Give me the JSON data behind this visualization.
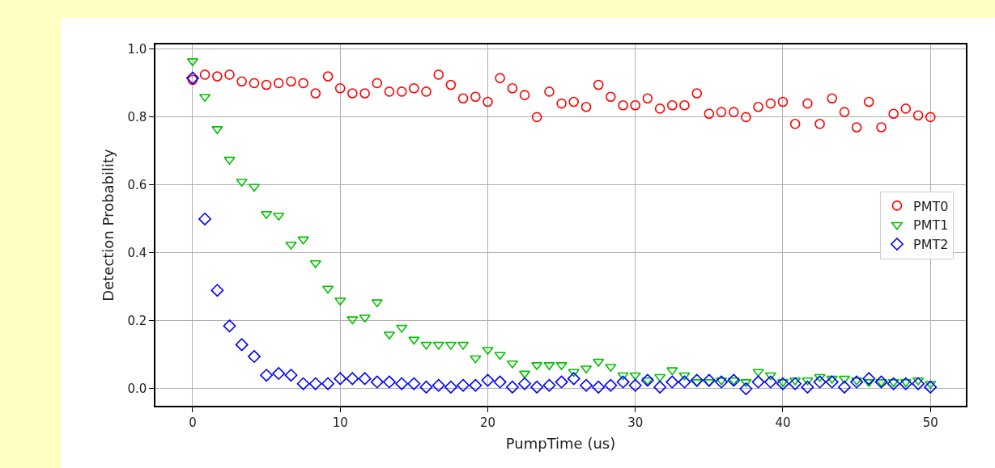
{
  "chart_data": {
    "type": "scatter",
    "xlabel": "PumpTime (us)",
    "ylabel": "Detection Probability",
    "x": [
      0,
      0.83,
      1.67,
      2.5,
      3.33,
      4.17,
      5,
      5.83,
      6.67,
      7.5,
      8.33,
      9.17,
      10,
      10.83,
      11.67,
      12.5,
      13.33,
      14.17,
      15,
      15.83,
      16.67,
      17.5,
      18.33,
      19.17,
      20,
      20.83,
      21.67,
      22.5,
      23.33,
      24.17,
      25,
      25.83,
      26.67,
      27.5,
      28.33,
      29.17,
      30,
      30.83,
      31.67,
      32.5,
      33.33,
      34.17,
      35,
      35.83,
      36.67,
      37.5,
      38.33,
      39.17,
      40,
      40.83,
      41.67,
      42.5,
      43.33,
      44.17,
      45,
      45.83,
      46.67,
      47.5,
      48.33,
      49.17,
      50
    ],
    "series": [
      {
        "name": "PMT0",
        "color": "#ff0000",
        "marker": "circle",
        "values": [
          0.91,
          0.925,
          0.92,
          0.925,
          0.905,
          0.9,
          0.895,
          0.9,
          0.905,
          0.9,
          0.87,
          0.92,
          0.885,
          0.87,
          0.87,
          0.9,
          0.875,
          0.875,
          0.885,
          0.875,
          0.925,
          0.895,
          0.855,
          0.86,
          0.845,
          0.915,
          0.885,
          0.865,
          0.8,
          0.875,
          0.84,
          0.845,
          0.83,
          0.895,
          0.86,
          0.835,
          0.835,
          0.855,
          0.825,
          0.835,
          0.835,
          0.87,
          0.81,
          0.815,
          0.815,
          0.8,
          0.83,
          0.84,
          0.845,
          0.78,
          0.84,
          0.78,
          0.855,
          0.815,
          0.77,
          0.845,
          0.77,
          0.81,
          0.825,
          0.805,
          0.8
        ]
      },
      {
        "name": "PMT1",
        "color": "#00c000",
        "marker": "triangle",
        "values": [
          0.965,
          0.86,
          0.765,
          0.675,
          0.61,
          0.595,
          0.515,
          0.51,
          0.425,
          0.44,
          0.37,
          0.295,
          0.26,
          0.205,
          0.21,
          0.255,
          0.16,
          0.18,
          0.145,
          0.13,
          0.13,
          0.13,
          0.13,
          0.09,
          0.115,
          0.1,
          0.075,
          0.045,
          0.07,
          0.07,
          0.07,
          0.05,
          0.06,
          0.08,
          0.065,
          0.04,
          0.04,
          0.025,
          0.035,
          0.055,
          0.04,
          0.02,
          0.02,
          0.025,
          0.025,
          0.02,
          0.05,
          0.04,
          0.02,
          0.025,
          0.025,
          0.035,
          0.03,
          0.03,
          0.025,
          0.02,
          0.02,
          0.02,
          0.02,
          0.025,
          0.015
        ]
      },
      {
        "name": "PMT2",
        "color": "#0000ff",
        "marker": "diamond",
        "values": [
          0.915,
          0.5,
          0.29,
          0.185,
          0.13,
          0.095,
          0.04,
          0.045,
          0.04,
          0.015,
          0.015,
          0.015,
          0.03,
          0.03,
          0.03,
          0.02,
          0.02,
          0.015,
          0.015,
          0.005,
          0.01,
          0.005,
          0.01,
          0.01,
          0.025,
          0.02,
          0.005,
          0.015,
          0.005,
          0.01,
          0.02,
          0.03,
          0.01,
          0.005,
          0.01,
          0.02,
          0.01,
          0.025,
          0.005,
          0.02,
          0.02,
          0.025,
          0.025,
          0.02,
          0.025,
          0,
          0.02,
          0.02,
          0.015,
          0.015,
          0.005,
          0.02,
          0.02,
          0.005,
          0.02,
          0.03,
          0.02,
          0.015,
          0.015,
          0.015,
          0.005
        ]
      }
    ],
    "xlim": [
      -2.52,
      52.4
    ],
    "xticks": [
      0,
      10,
      20,
      30,
      40,
      50
    ],
    "ylim": [
      -0.05,
      1.014
    ],
    "yticks": [
      {
        "value": 0,
        "label": "0.0"
      },
      {
        "value": 0.2,
        "label": "0.2"
      },
      {
        "value": 0.4,
        "label": "0.4"
      },
      {
        "value": 0.6,
        "label": "0.6"
      },
      {
        "value": 0.8,
        "label": "0.8"
      },
      {
        "value": 1,
        "label": "1.0"
      }
    ],
    "grid": true,
    "legend": "right"
  }
}
